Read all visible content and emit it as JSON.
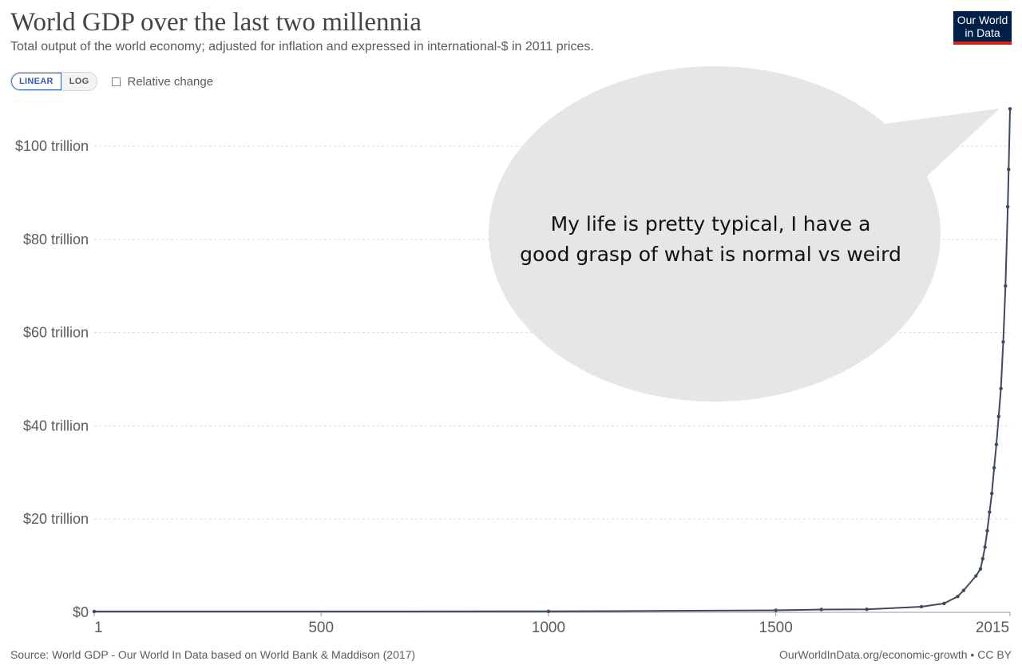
{
  "header": {
    "title": "World GDP over the last two millennia",
    "subtitle": "Total output of the world economy; adjusted for inflation and expressed in international-$ in 2011 prices.",
    "logo_line1": "Our World",
    "logo_line2": "in Data"
  },
  "controls": {
    "linear_label": "LINEAR",
    "log_label": "LOG",
    "relative_change_label": "Relative change"
  },
  "speech_bubble": {
    "line1": "My life is pretty typical, I have a",
    "line2": "good grasp of what is normal vs weird"
  },
  "footer": {
    "source": "Source: World GDP - Our World In Data based on World Bank & Maddison (2017)",
    "link": "OurWorldInData.org/economic-growth",
    "license": " • CC BY"
  },
  "colors": {
    "line": "#3e4a5e",
    "grid": "#dddddd",
    "bubble": "#e6e6e6",
    "logo_bg": "#002147",
    "logo_accent": "#ce261e",
    "active_toggle": "#3360a9"
  },
  "chart_data": {
    "type": "line",
    "title": "World GDP over the last two millennia",
    "xlabel": "",
    "ylabel": "",
    "xlim": [
      1,
      2015
    ],
    "ylim": [
      0,
      108
    ],
    "y_unit": "trillion international-$ (2011 prices)",
    "x_ticks": [
      1,
      500,
      1000,
      1500,
      2015
    ],
    "x_tick_labels": [
      "1",
      "500",
      "1000",
      "1500",
      "2015"
    ],
    "y_ticks": [
      0,
      20,
      40,
      60,
      80,
      100
    ],
    "y_tick_labels": [
      "$0",
      "$20 trillion",
      "$40 trillion",
      "$60 trillion",
      "$80 trillion",
      "$100 trillion"
    ],
    "grid": true,
    "series": [
      {
        "name": "World GDP",
        "x": [
          1,
          1000,
          1500,
          1600,
          1700,
          1820,
          1870,
          1900,
          1913,
          1940,
          1950,
          1955,
          1960,
          1965,
          1970,
          1975,
          1980,
          1985,
          1990,
          1995,
          2000,
          2005,
          2010,
          2012,
          2015
        ],
        "values": [
          0.18,
          0.21,
          0.43,
          0.6,
          0.64,
          1.2,
          1.9,
          3.4,
          4.7,
          7.8,
          9.3,
          11.5,
          14.0,
          17.5,
          21.5,
          25.5,
          31.0,
          36.0,
          42.0,
          48.0,
          58.0,
          70.0,
          87.0,
          95.0,
          108.0
        ]
      }
    ]
  }
}
